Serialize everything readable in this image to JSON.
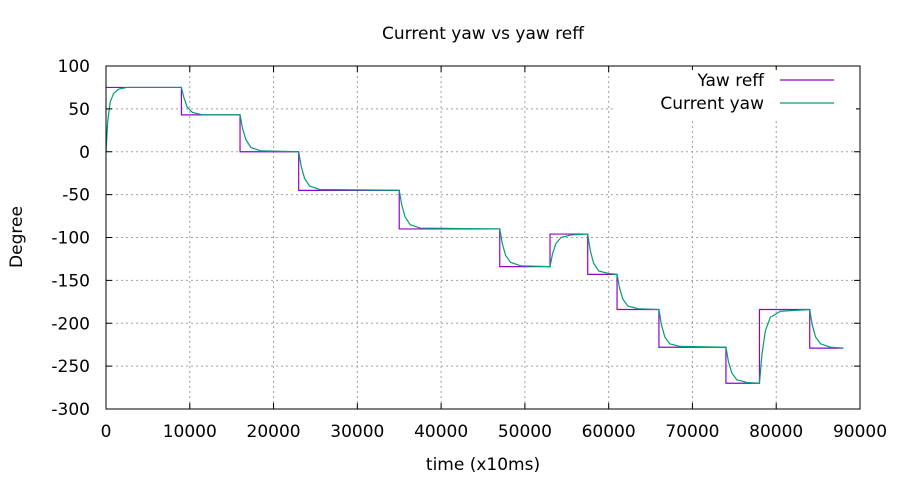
{
  "chart_data": {
    "type": "line",
    "title": "Current yaw vs yaw reff",
    "xlabel": "time (x10ms)",
    "ylabel": "Degree",
    "xlim": [
      0,
      90000
    ],
    "ylim": [
      -300,
      100
    ],
    "xticks": [
      0,
      10000,
      20000,
      30000,
      40000,
      50000,
      60000,
      70000,
      80000,
      90000
    ],
    "yticks": [
      100,
      50,
      0,
      -50,
      -100,
      -150,
      -200,
      -250,
      -300
    ],
    "grid": true,
    "legend_position": "top-right",
    "series": [
      {
        "name": "Yaw reff",
        "color": "#9400d3",
        "kind": "step",
        "x": [
          0,
          9000,
          16000,
          23000,
          35000,
          47000,
          53000,
          57500,
          61000,
          66000,
          74000,
          78000,
          84000,
          88000
        ],
        "values": [
          75,
          43,
          0,
          -45,
          -90,
          -134,
          -96,
          -143,
          -184,
          -228,
          -270,
          -184,
          -229,
          -229
        ]
      },
      {
        "name": "Current yaw",
        "color": "#009e73",
        "kind": "line",
        "x": [
          0,
          200,
          500,
          900,
          1500,
          2500,
          9000,
          9300,
          9700,
          10300,
          11500,
          16000,
          16300,
          16700,
          17300,
          18500,
          23000,
          23300,
          23700,
          24300,
          25500,
          35000,
          35300,
          35700,
          36300,
          37500,
          47000,
          47300,
          47700,
          48300,
          49500,
          53000,
          53300,
          53700,
          54300,
          55500,
          57500,
          57800,
          58200,
          58800,
          60000,
          61000,
          61300,
          61700,
          62300,
          63500,
          66000,
          66300,
          66700,
          67300,
          68500,
          74000,
          74300,
          74700,
          75300,
          76500,
          78000,
          78300,
          78700,
          79300,
          80500,
          84000,
          84300,
          84700,
          85300,
          86500,
          88000
        ],
        "values": [
          0,
          35,
          58,
          68,
          73,
          75,
          75,
          63,
          52,
          46,
          43,
          43,
          27,
          14,
          5,
          1,
          0,
          -17,
          -31,
          -40,
          -44,
          -45,
          -62,
          -76,
          -85,
          -89,
          -90,
          -107,
          -121,
          -129,
          -133,
          -134,
          -119,
          -107,
          -100,
          -97,
          -96,
          -115,
          -130,
          -139,
          -142,
          -143,
          -159,
          -172,
          -180,
          -183,
          -184,
          -202,
          -216,
          -224,
          -227,
          -228,
          -245,
          -258,
          -266,
          -269,
          -270,
          -236,
          -209,
          -193,
          -186,
          -184,
          -202,
          -216,
          -224,
          -228,
          -229
        ]
      }
    ]
  }
}
